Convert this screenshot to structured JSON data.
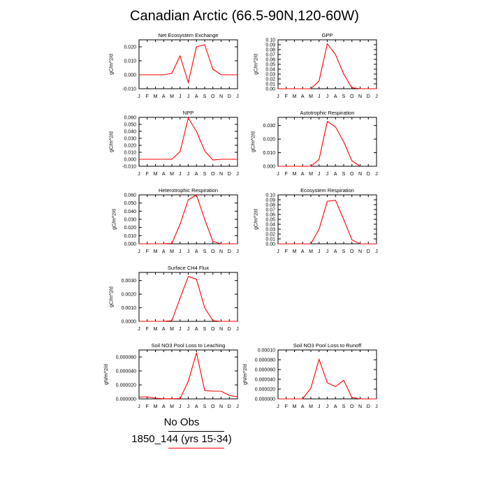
{
  "title": "Canadian Arctic (66.5-90N,120-60W)",
  "legend": {
    "entries": [
      {
        "label": "No Obs",
        "color": "#000000"
      },
      {
        "label": "1850_144 (yrs 15-34)",
        "color": "#ff0000"
      }
    ]
  },
  "colors": {
    "series": "#ff0000",
    "axes": "#000000"
  },
  "chart_data": [
    {
      "type": "line",
      "title": "Net Ecosystem Exchange",
      "ylabel": "gC/m^2/d",
      "categories": [
        "J",
        "F",
        "M",
        "A",
        "M",
        "J",
        "J",
        "A",
        "S",
        "O",
        "N",
        "D",
        "J"
      ],
      "ylim": [
        -0.01,
        0.025
      ],
      "yticks": [
        -0.01,
        0.0,
        0.01,
        0.02
      ],
      "ytick_labels": [
        "-0.010",
        "0.000",
        "0.010",
        "0.020"
      ],
      "series": [
        {
          "values": [
            0.0,
            0.0,
            0.0,
            0.0,
            0.001,
            0.0135,
            -0.0055,
            0.02,
            0.0215,
            0.004,
            0.0,
            0.0,
            0.0
          ]
        }
      ]
    },
    {
      "type": "line",
      "title": "GPP",
      "ylabel": "gC/m^2/d",
      "categories": [
        "J",
        "F",
        "M",
        "A",
        "M",
        "J",
        "J",
        "A",
        "S",
        "O",
        "N",
        "D",
        "J"
      ],
      "ylim": [
        0.0,
        0.1
      ],
      "yticks": [
        0.0,
        0.01,
        0.02,
        0.03,
        0.04,
        0.05,
        0.06,
        0.07,
        0.08,
        0.09,
        0.1
      ],
      "ytick_labels": [
        "0.00",
        "0.01",
        "0.02",
        "0.03",
        "0.04",
        "0.05",
        "0.06",
        "0.07",
        "0.08",
        "0.09",
        "0.10"
      ],
      "series": [
        {
          "values": [
            0.0,
            0.0,
            0.0,
            0.0,
            0.0,
            0.016,
            0.092,
            0.07,
            0.03,
            0.002,
            0.0,
            0.0,
            0.0
          ]
        }
      ]
    },
    {
      "type": "line",
      "title": "NPP",
      "ylabel": "gC/m^2/d",
      "categories": [
        "J",
        "F",
        "M",
        "A",
        "M",
        "J",
        "J",
        "A",
        "S",
        "O",
        "N",
        "D",
        "J"
      ],
      "ylim": [
        -0.01,
        0.06
      ],
      "yticks": [
        -0.01,
        0.0,
        0.01,
        0.02,
        0.03,
        0.04,
        0.05,
        0.06
      ],
      "ytick_labels": [
        "-0.010",
        "0.000",
        "0.010",
        "0.020",
        "0.030",
        "0.040",
        "0.050",
        "0.060"
      ],
      "series": [
        {
          "values": [
            0.0,
            0.0,
            0.0,
            0.0,
            0.0,
            0.011,
            0.059,
            0.04,
            0.012,
            -0.001,
            0.0,
            0.0,
            0.0
          ]
        }
      ]
    },
    {
      "type": "line",
      "title": "Autotrophic Respiration",
      "ylabel": "gC/m^2/d",
      "categories": [
        "J",
        "F",
        "M",
        "A",
        "M",
        "J",
        "J",
        "A",
        "S",
        "O",
        "N",
        "D",
        "J"
      ],
      "ylim": [
        0.0,
        0.036
      ],
      "yticks": [
        0.0,
        0.01,
        0.02,
        0.03
      ],
      "ytick_labels": [
        "0.000",
        "0.010",
        "0.020",
        "0.030"
      ],
      "series": [
        {
          "values": [
            0.0,
            0.0,
            0.0,
            0.0,
            0.0,
            0.005,
            0.033,
            0.029,
            0.018,
            0.004,
            0.0,
            null,
            null
          ]
        }
      ]
    },
    {
      "type": "line",
      "title": "Heterotrophic Respiration",
      "ylabel": "gC/m^2/d",
      "categories": [
        "J",
        "F",
        "M",
        "A",
        "M",
        "J",
        "J",
        "A",
        "S",
        "O",
        "N",
        "D",
        "J"
      ],
      "ylim": [
        0.0,
        0.06
      ],
      "yticks": [
        0.0,
        0.01,
        0.02,
        0.03,
        0.04,
        0.05,
        0.06
      ],
      "ytick_labels": [
        "0.000",
        "0.010",
        "0.020",
        "0.030",
        "0.040",
        "0.050",
        "0.060"
      ],
      "series": [
        {
          "values": [
            0.0,
            0.0,
            0.0,
            0.0,
            0.0005,
            0.024,
            0.054,
            0.06,
            0.03,
            0.003,
            0.0,
            0.0,
            0.0
          ]
        }
      ]
    },
    {
      "type": "line",
      "title": "Ecosystem Respiration",
      "ylabel": "gC/m^2/d",
      "categories": [
        "J",
        "F",
        "M",
        "A",
        "M",
        "J",
        "J",
        "A",
        "S",
        "O",
        "N",
        "D",
        "J"
      ],
      "ylim": [
        0.0,
        0.1
      ],
      "yticks": [
        0.0,
        0.01,
        0.02,
        0.03,
        0.04,
        0.05,
        0.06,
        0.07,
        0.08,
        0.09,
        0.1
      ],
      "ytick_labels": [
        "0.00",
        "0.01",
        "0.02",
        "0.03",
        "0.04",
        "0.05",
        "0.06",
        "0.07",
        "0.08",
        "0.09",
        "0.10"
      ],
      "series": [
        {
          "values": [
            0.0,
            0.0,
            0.0,
            0.0,
            0.0,
            0.03,
            0.087,
            0.089,
            0.05,
            0.008,
            0.0,
            0.0,
            0.0
          ]
        }
      ]
    },
    {
      "type": "line",
      "title": "Surface CH4 Flux",
      "ylabel": "gC/m^2/d",
      "categories": [
        "J",
        "F",
        "M",
        "A",
        "M",
        "J",
        "J",
        "A",
        "S",
        "O",
        "N",
        "D",
        "J"
      ],
      "ylim": [
        0.0,
        0.0036
      ],
      "yticks": [
        0.0,
        0.001,
        0.002,
        0.003
      ],
      "ytick_labels": [
        "0.0000",
        "0.0010",
        "0.0020",
        "0.0030"
      ],
      "series": [
        {
          "values": [
            0.0,
            0.0,
            0.0,
            0.0,
            5e-05,
            0.0017,
            0.0033,
            0.0031,
            0.001,
            5e-05,
            0.0,
            0.0,
            0.0
          ]
        }
      ]
    },
    {
      "type": "line",
      "title": "Soil NO3 Pool Loss to Leaching",
      "ylabel": "gN/m^2/d",
      "categories": [
        "J",
        "F",
        "M",
        "A",
        "M",
        "J",
        "J",
        "A",
        "S",
        "O",
        "N",
        "D",
        "J"
      ],
      "ylim": [
        0.0,
        7e-05
      ],
      "yticks": [
        0.0,
        2e-05,
        4e-05,
        6e-05
      ],
      "ytick_labels": [
        "0.000000",
        "0.000020",
        "0.000040",
        "0.000060"
      ],
      "series": [
        {
          "values": [
            2.5e-06,
            3e-06,
            1e-06,
            2e-07,
            2e-07,
            5e-07,
            2.5e-05,
            6.6e-05,
            1.2e-05,
            1.1e-05,
            1.1e-05,
            5e-06,
            3e-06
          ]
        }
      ]
    },
    {
      "type": "line",
      "title": "Soil NO3 Pool Loss to Runoff",
      "ylabel": "gN/m^2/d",
      "categories": [
        "J",
        "F",
        "M",
        "A",
        "M",
        "J",
        "J",
        "A",
        "S",
        "O",
        "N",
        "D",
        "J"
      ],
      "ylim": [
        0.0,
        0.0001
      ],
      "yticks": [
        0.0,
        2e-05,
        4e-05,
        6e-05,
        8e-05,
        0.0001
      ],
      "ytick_labels": [
        "0.000000",
        "0.000020",
        "0.000040",
        "0.000060",
        "0.000080",
        "0.00010"
      ],
      "series": [
        {
          "values": [
            0.0,
            0.0,
            0.0,
            0.0,
            2.2e-05,
            8.1e-05,
            3.3e-05,
            2.5e-05,
            3.8e-05,
            3e-06,
            0.0,
            0.0,
            0.0
          ]
        }
      ]
    }
  ]
}
